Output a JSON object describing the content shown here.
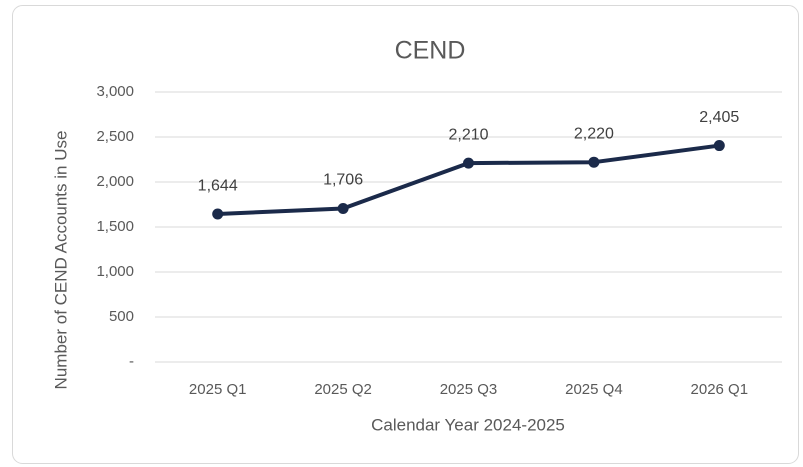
{
  "chart_data": {
    "type": "line",
    "title": "CEND",
    "x_label": "Calendar Year 2024-2025",
    "y_label": "Number of CEND Accounts in Use",
    "categories": [
      "2025 Q1",
      "2025 Q2",
      "2025 Q3",
      "2025 Q4",
      "2026 Q1"
    ],
    "values": [
      1644,
      1706,
      2210,
      2220,
      2405
    ],
    "value_labels": [
      "1,644",
      "1,706",
      "2,210",
      "2,220",
      "2,405"
    ],
    "color": "#1b2a4a",
    "ylim": [
      0,
      3000
    ],
    "yticks": [
      {
        "value": 0,
        "label": "-"
      },
      500,
      {
        "value": 1000,
        "label": "1,000"
      },
      {
        "value": 1500,
        "label": "1,500"
      },
      {
        "value": 2000,
        "label": "2,000"
      },
      {
        "value": 2500,
        "label": "2,500"
      },
      {
        "value": 3000,
        "label": "3,000"
      }
    ],
    "grid": true
  }
}
